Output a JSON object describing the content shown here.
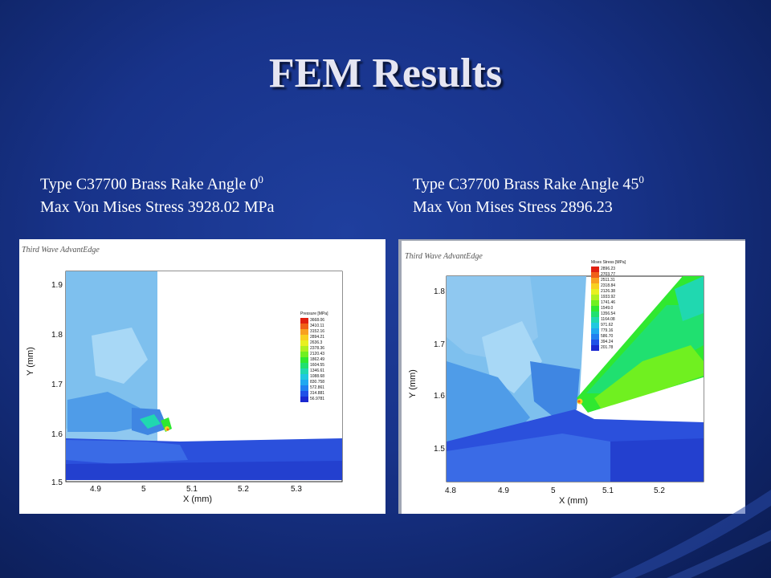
{
  "slide": {
    "title": "FEM Results"
  },
  "left": {
    "caption_line1": "Type C37700 Brass Rake Angle  0",
    "caption_sup1": "0",
    "caption_line2": "Max Von Mises Stress 3928.02 MPa",
    "watermark": "Third Wave AdvantEdge",
    "x_ticks": [
      "4.9",
      "5",
      "5.1",
      "5.2",
      "5.3"
    ],
    "y_ticks": [
      "1.9",
      "1.8",
      "1.7",
      "1.6",
      "1.5"
    ],
    "x_label": "X (mm)",
    "y_label": "Y (mm)",
    "legend_title": "Pressure [MPa]",
    "legend_values": [
      "3668.06",
      "3410.11",
      "3152.16",
      "2894.21",
      "2636.3",
      "2378.36",
      "2120.43",
      "1862.49",
      "1604.55",
      "1346.61",
      "1088.68",
      "830.758",
      "572.861",
      "314.881",
      "56.9781"
    ]
  },
  "right": {
    "caption_line1": "Type C37700 Brass Rake Angle  45",
    "caption_sup1": "0",
    "caption_line2": "Max Von Mises Stress 2896.23",
    "watermark": "Third Wave AdvantEdge",
    "x_ticks": [
      "4.8",
      "4.9",
      "5",
      "5.1",
      "5.2"
    ],
    "y_ticks": [
      "1.8",
      "1.7",
      "1.6",
      "1.5"
    ],
    "x_label": "X (mm)",
    "y_label": "Y (mm)",
    "legend_title": "Mises Stress [MPa]",
    "legend_values": [
      "2896.23",
      "2703.77",
      "2511.31",
      "2318.84",
      "2126.38",
      "1933.92",
      "1741.46",
      "1549.0",
      "1356.54",
      "1164.08",
      "971.62",
      "779.16",
      "586.70",
      "394.24",
      "201.78"
    ]
  },
  "colors": {
    "legend_scale": [
      "#e02010",
      "#f06018",
      "#f8a020",
      "#f8d020",
      "#e8f020",
      "#b0f020",
      "#70f020",
      "#30e830",
      "#20e070",
      "#20d8b0",
      "#20c8e0",
      "#20a8f0",
      "#2080f0",
      "#2050e8",
      "#1a28d0"
    ]
  }
}
